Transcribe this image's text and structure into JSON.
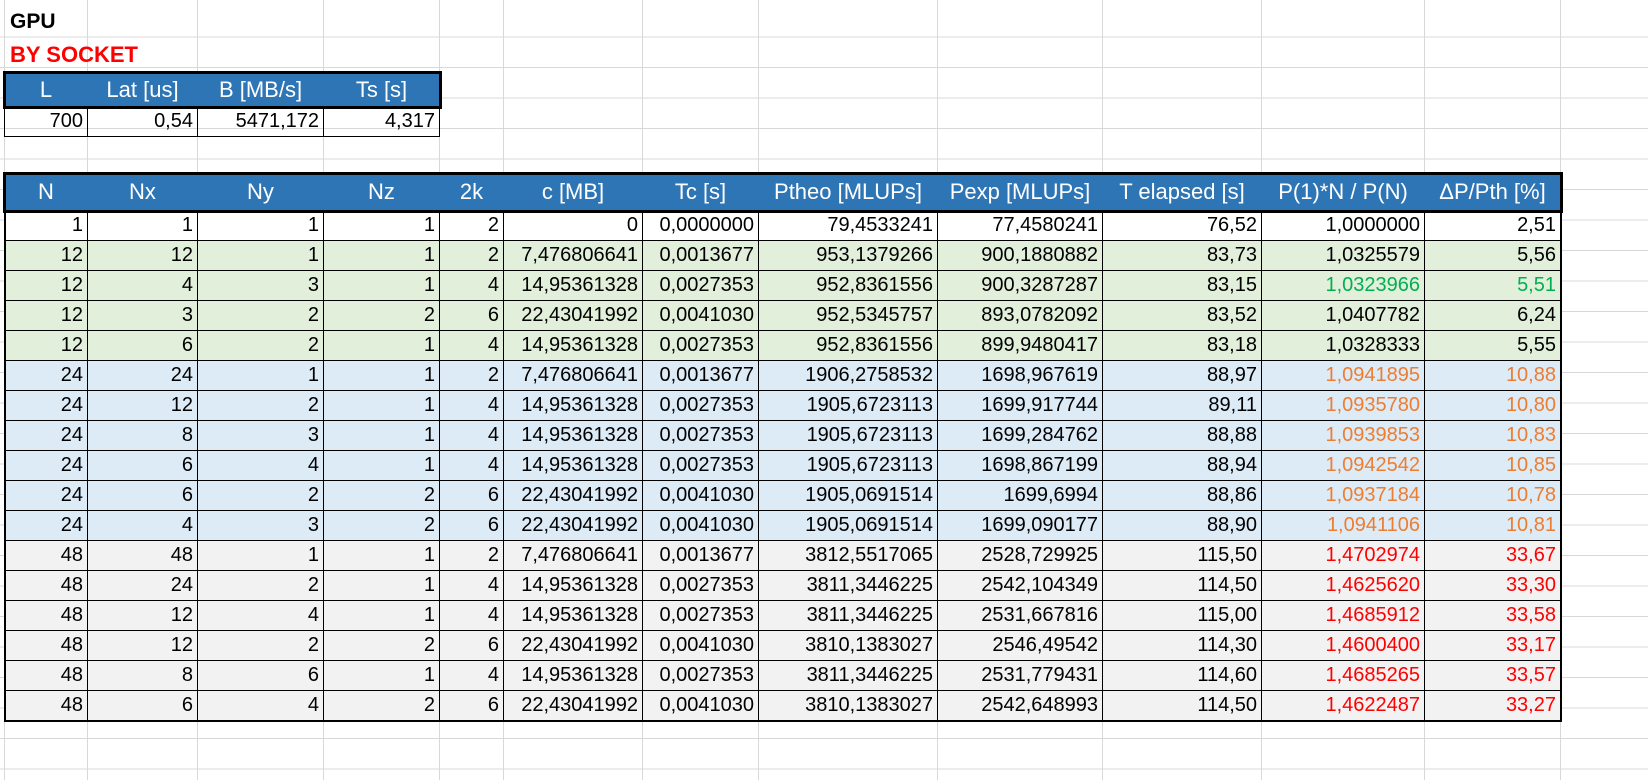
{
  "title": "GPU",
  "subtitle": "BY SOCKET",
  "params_table": {
    "headers": [
      "L",
      "Lat [us]",
      "B [MB/s]",
      "Ts [s]"
    ],
    "row": [
      "700",
      "0,54",
      "5471,172",
      "4,317"
    ]
  },
  "results_table": {
    "headers": [
      "N",
      "Nx",
      "Ny",
      "Nz",
      "2k",
      "c [MB]",
      "Tc [s]",
      "Ptheo [MLUPs]",
      "Pexp [MLUPs]",
      "T elapsed [s]",
      "P(1)*N / P(N)",
      "ΔP/Pth [%]"
    ],
    "rows": [
      {
        "group": "white",
        "highlight": "",
        "cells": [
          "1",
          "1",
          "1",
          "1",
          "2",
          "0",
          "0,0000000",
          "79,4533241",
          "77,4580241",
          "76,52",
          "1,0000000",
          "2,51"
        ]
      },
      {
        "group": "green",
        "highlight": "",
        "cells": [
          "12",
          "12",
          "1",
          "1",
          "2",
          "7,476806641",
          "0,0013677",
          "953,1379266",
          "900,1880882",
          "83,73",
          "1,0325579",
          "5,56"
        ]
      },
      {
        "group": "green",
        "highlight": "green",
        "cells": [
          "12",
          "4",
          "3",
          "1",
          "4",
          "14,95361328",
          "0,0027353",
          "952,8361556",
          "900,3287287",
          "83,15",
          "1,0323966",
          "5,51"
        ]
      },
      {
        "group": "green",
        "highlight": "",
        "cells": [
          "12",
          "3",
          "2",
          "2",
          "6",
          "22,43041992",
          "0,0041030",
          "952,5345757",
          "893,0782092",
          "83,52",
          "1,0407782",
          "6,24"
        ]
      },
      {
        "group": "green",
        "highlight": "",
        "cells": [
          "12",
          "6",
          "2",
          "1",
          "4",
          "14,95361328",
          "0,0027353",
          "952,8361556",
          "899,9480417",
          "83,18",
          "1,0328333",
          "5,55"
        ]
      },
      {
        "group": "blue",
        "highlight": "orange",
        "cells": [
          "24",
          "24",
          "1",
          "1",
          "2",
          "7,476806641",
          "0,0013677",
          "1906,2758532",
          "1698,967619",
          "88,97",
          "1,0941895",
          "10,88"
        ]
      },
      {
        "group": "blue",
        "highlight": "orange",
        "cells": [
          "24",
          "12",
          "2",
          "1",
          "4",
          "14,95361328",
          "0,0027353",
          "1905,6723113",
          "1699,917744",
          "89,11",
          "1,0935780",
          "10,80"
        ]
      },
      {
        "group": "blue",
        "highlight": "orange",
        "cells": [
          "24",
          "8",
          "3",
          "1",
          "4",
          "14,95361328",
          "0,0027353",
          "1905,6723113",
          "1699,284762",
          "88,88",
          "1,0939853",
          "10,83"
        ]
      },
      {
        "group": "blue",
        "highlight": "orange",
        "cells": [
          "24",
          "6",
          "4",
          "1",
          "4",
          "14,95361328",
          "0,0027353",
          "1905,6723113",
          "1698,867199",
          "88,94",
          "1,0942542",
          "10,85"
        ]
      },
      {
        "group": "blue",
        "highlight": "orange",
        "cells": [
          "24",
          "6",
          "2",
          "2",
          "6",
          "22,43041992",
          "0,0041030",
          "1905,0691514",
          "1699,6994",
          "88,86",
          "1,0937184",
          "10,78"
        ]
      },
      {
        "group": "blue",
        "highlight": "orange",
        "cells": [
          "24",
          "4",
          "3",
          "2",
          "6",
          "22,43041992",
          "0,0041030",
          "1905,0691514",
          "1699,090177",
          "88,90",
          "1,0941106",
          "10,81"
        ]
      },
      {
        "group": "gray",
        "highlight": "red",
        "cells": [
          "48",
          "48",
          "1",
          "1",
          "2",
          "7,476806641",
          "0,0013677",
          "3812,5517065",
          "2528,729925",
          "115,50",
          "1,4702974",
          "33,67"
        ]
      },
      {
        "group": "gray",
        "highlight": "red",
        "cells": [
          "48",
          "24",
          "2",
          "1",
          "4",
          "14,95361328",
          "0,0027353",
          "3811,3446225",
          "2542,104349",
          "114,50",
          "1,4625620",
          "33,30"
        ]
      },
      {
        "group": "gray",
        "highlight": "red",
        "cells": [
          "48",
          "12",
          "4",
          "1",
          "4",
          "14,95361328",
          "0,0027353",
          "3811,3446225",
          "2531,667816",
          "115,00",
          "1,4685912",
          "33,58"
        ]
      },
      {
        "group": "gray",
        "highlight": "red",
        "cells": [
          "48",
          "12",
          "2",
          "2",
          "6",
          "22,43041992",
          "0,0041030",
          "3810,1383027",
          "2546,49542",
          "114,30",
          "1,4600400",
          "33,17"
        ]
      },
      {
        "group": "gray",
        "highlight": "red",
        "cells": [
          "48",
          "8",
          "6",
          "1",
          "4",
          "14,95361328",
          "0,0027353",
          "3811,3446225",
          "2531,779431",
          "114,60",
          "1,4685265",
          "33,57"
        ]
      },
      {
        "group": "gray",
        "highlight": "red",
        "cells": [
          "48",
          "6",
          "4",
          "2",
          "6",
          "22,43041992",
          "0,0041030",
          "3810,1383027",
          "2542,648993",
          "114,50",
          "1,4622487",
          "33,27"
        ]
      }
    ]
  },
  "colors": {
    "header_fill": "#2e75b6",
    "group_green": "#e2efda",
    "group_blue": "#ddebf7",
    "group_gray": "#f2f2f2",
    "text_green": "#00b050",
    "text_orange": "#ed7d31",
    "text_red": "#ff0000"
  }
}
